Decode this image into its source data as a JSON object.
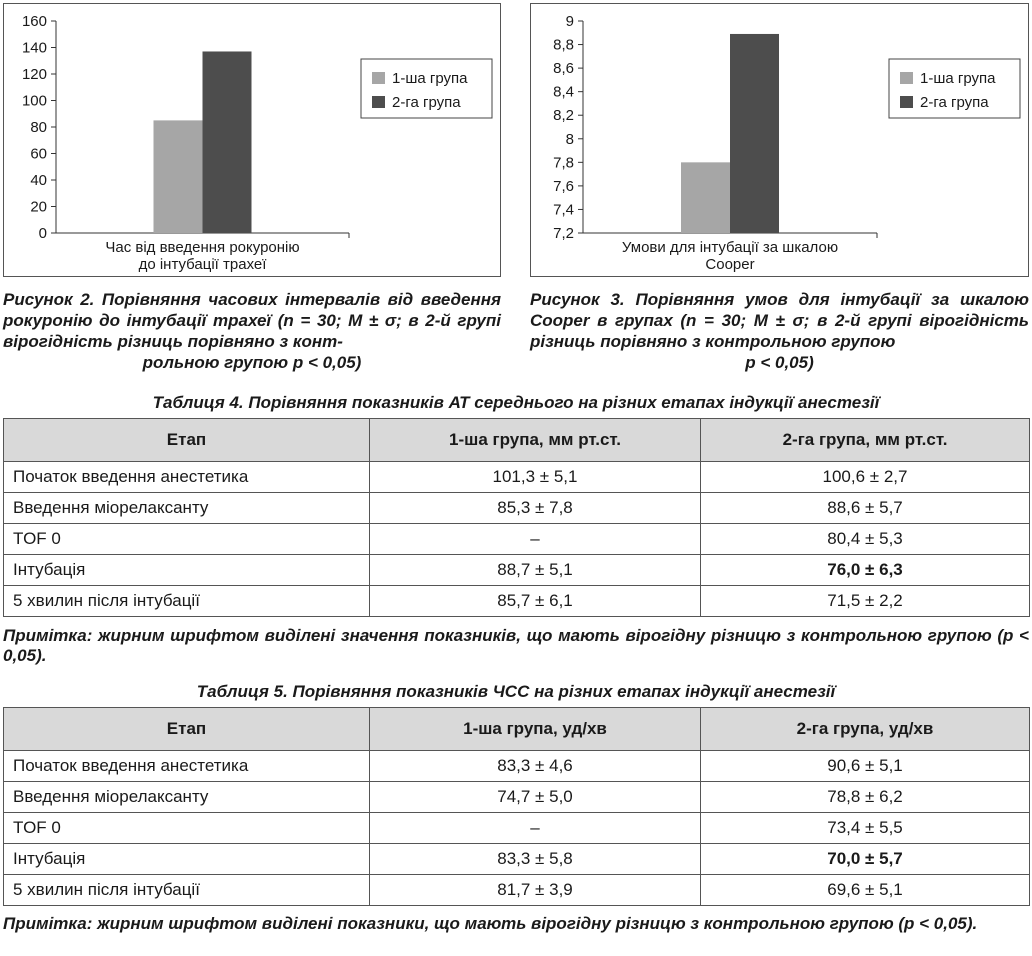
{
  "chart_data": [
    {
      "type": "bar",
      "categories": [
        "Час від введення рокуронію до інтубації трахеї"
      ],
      "category_lines": [
        "Час від введення рокуронію",
        "до інтубації трахеї"
      ],
      "series": [
        {
          "name": "1-ша група",
          "values": [
            85
          ],
          "color": "#a6a6a6"
        },
        {
          "name": "2-га група",
          "values": [
            137
          ],
          "color": "#4d4d4d"
        }
      ],
      "ylim": [
        0,
        160
      ],
      "yticks": [
        0,
        20,
        40,
        60,
        80,
        100,
        120,
        140,
        160
      ],
      "ytick_labels": [
        "0",
        "20",
        "40",
        "60",
        "80",
        "100",
        "120",
        "140",
        "160"
      ],
      "legend": "right",
      "grid": false
    },
    {
      "type": "bar",
      "categories": [
        "Умови для інтубації за шкалою Cooper"
      ],
      "category_lines": [
        "Умови для інтубації за шкалою",
        "Cooper"
      ],
      "series": [
        {
          "name": "1-ша група",
          "values": [
            7.8
          ],
          "color": "#a6a6a6"
        },
        {
          "name": "2-га група",
          "values": [
            8.89
          ],
          "color": "#4d4d4d"
        }
      ],
      "ylim": [
        7.2,
        9
      ],
      "yticks": [
        7.2,
        7.4,
        7.6,
        7.8,
        8,
        8.2,
        8.4,
        8.6,
        8.8,
        9
      ],
      "ytick_labels": [
        "7,2",
        "7,4",
        "7,6",
        "7,8",
        "8",
        "8,2",
        "8,4",
        "8,6",
        "8,8",
        "9"
      ],
      "legend": "right",
      "grid": false
    }
  ],
  "captions": {
    "fig2_main": "Рисунок 2. Порівняння часових інтервалів від введення рокуронію до інтубації трахеї (n = 30; M ± σ; в 2-й групі вірогідність різниць порівняно з конт-",
    "fig2_last": "рольною групою p < 0,05)",
    "fig3_main": "Рисунок 3. Порівняння умов для інтубації за шкалою Cooper в групах (n = 30; M ± σ; в 2-й групі вірогідність різниць порівняно з контрольною групою",
    "fig3_last": "p < 0,05)"
  },
  "table4": {
    "title": "Таблиця 4. Порівняння показників АТ середнього на різних етапах індукції анестезії",
    "headers": [
      "Етап",
      "1-ша група, мм рт.ст.",
      "2-га група, мм рт.ст."
    ],
    "rows": [
      [
        "Початок введення анестетика",
        "101,3 ± 5,1",
        "100,6 ± 2,7"
      ],
      [
        "Введення міорелаксанту",
        "85,3 ± 7,8",
        "88,6 ± 5,7"
      ],
      [
        "TOF 0",
        "–",
        "80,4 ± 5,3"
      ],
      [
        "Інтубація",
        "88,7 ± 5,1",
        "76,0 ± 6,3"
      ],
      [
        "5 хвилин після інтубації",
        "85,7 ± 6,1",
        "71,5 ± 2,2"
      ]
    ],
    "note": "Примітка: жирним шрифтом виділені значення показників, що мають вірогідну різницю з контрольною групою (p < 0,05)."
  },
  "table5": {
    "title": "Таблиця 5. Порівняння показників ЧСС на різних етапах індукції анестезії",
    "headers": [
      "Етап",
      "1-ша група, уд/хв",
      "2-га група, уд/хв"
    ],
    "rows": [
      [
        "Початок введення анестетика",
        "83,3 ± 4,6",
        "90,6 ± 5,1"
      ],
      [
        "Введення міорелаксанту",
        "74,7 ± 5,0",
        "78,8 ± 6,2"
      ],
      [
        "TOF 0",
        "–",
        "73,4 ± 5,5"
      ],
      [
        "Інтубація",
        "83,3 ± 5,8",
        "70,0 ± 5,7"
      ],
      [
        "5 хвилин після інтубації",
        "81,7 ± 3,9",
        "69,6 ± 5,1"
      ]
    ],
    "note": "Примітка: жирним шрифтом виділені показники, що мають вірогідну різницю з контрольною групою (p < 0,05)."
  }
}
